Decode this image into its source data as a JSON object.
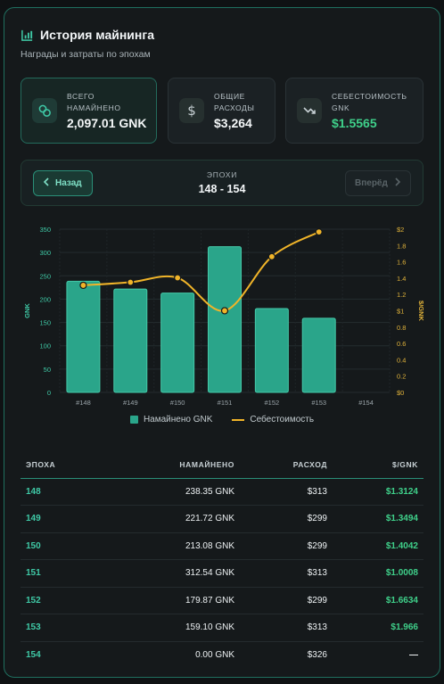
{
  "header": {
    "title": "История майнинга",
    "subtitle": "Награды и затраты по эпохам",
    "icon": "bar-chart-icon"
  },
  "stats": [
    {
      "label_line1": "ВСЕГО",
      "label_line2": "НАМАЙНЕНО",
      "value": "2,097.01 GNK",
      "icon": "link-icon"
    },
    {
      "label_line1": "ОБЩИЕ",
      "label_line2": "РАСХОДЫ",
      "value": "$3,264",
      "icon": "dollar-icon"
    },
    {
      "label_line1": "СЕБЕСТОИМОСТЬ",
      "label_line2": "GNK",
      "value": "$1.5565",
      "icon": "trend-down-icon"
    }
  ],
  "nav": {
    "prev_label": "Назад",
    "next_label": "Вперёд",
    "epochs_label": "ЭПОХИ",
    "epochs_range": "148 - 154"
  },
  "chart_data": {
    "type": "bar",
    "categories": [
      "#148",
      "#149",
      "#150",
      "#151",
      "#152",
      "#153",
      "#154"
    ],
    "series": [
      {
        "name": "Намайнено GNK",
        "type": "bar",
        "axis": "left",
        "values": [
          238.35,
          221.72,
          213.08,
          312.54,
          179.87,
          159.1,
          0
        ]
      },
      {
        "name": "Себестоимость",
        "type": "line",
        "axis": "right",
        "values": [
          1.3124,
          1.3494,
          1.4042,
          1.0008,
          1.6634,
          1.966,
          null
        ]
      }
    ],
    "ylabel": "GNK",
    "y2label": "$/GNK",
    "ylim": [
      0,
      350
    ],
    "y2lim": [
      0,
      2
    ],
    "yticks": [
      "0",
      "50",
      "100",
      "150",
      "200",
      "250",
      "300",
      "350"
    ],
    "y2ticks": [
      "$0",
      "0.2",
      "0.4",
      "0.6",
      "0.8",
      "$1",
      "1.2",
      "1.4",
      "1.6",
      "1.8",
      "$2"
    ],
    "grid": true,
    "legend": "bottom"
  },
  "colors": {
    "accent": "#2aa58a",
    "line": "#f0b429",
    "positive": "#3fd08a"
  },
  "table": {
    "headers": [
      "ЭПОХА",
      "НАМАЙНЕНО",
      "РАСХОД",
      "$/GNK"
    ],
    "rows": [
      {
        "epoch": "148",
        "mined": "238.35 GNK",
        "cost": "$313",
        "per": "$1.3124"
      },
      {
        "epoch": "149",
        "mined": "221.72 GNK",
        "cost": "$299",
        "per": "$1.3494"
      },
      {
        "epoch": "150",
        "mined": "213.08 GNK",
        "cost": "$299",
        "per": "$1.4042"
      },
      {
        "epoch": "151",
        "mined": "312.54 GNK",
        "cost": "$313",
        "per": "$1.0008"
      },
      {
        "epoch": "152",
        "mined": "179.87 GNK",
        "cost": "$299",
        "per": "$1.6634"
      },
      {
        "epoch": "153",
        "mined": "159.10 GNK",
        "cost": "$313",
        "per": "$1.966"
      },
      {
        "epoch": "154",
        "mined": "0.00 GNK",
        "cost": "$326",
        "per": "—"
      }
    ]
  }
}
